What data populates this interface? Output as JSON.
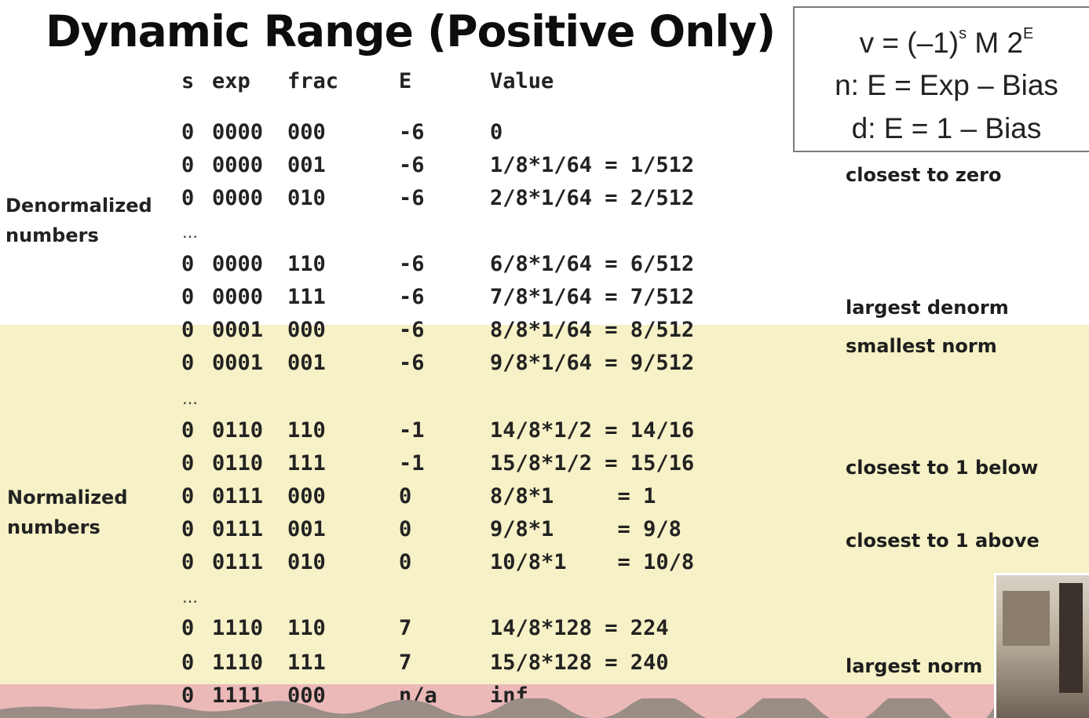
{
  "title": "Dynamic Range (Positive Only)",
  "formula": {
    "line1_pre": "v = (–1)",
    "line1_sup1": "s",
    "line1_mid": " M 2",
    "line1_sup2": "E",
    "line2": "n: E = Exp – Bias",
    "line3": "d: E = 1 – Bias"
  },
  "headers": {
    "s": "s",
    "exp": "exp",
    "frac": "frac",
    "E": "E",
    "value": "Value"
  },
  "rows": [
    {
      "s": "0",
      "exp": "0000",
      "frac": "000",
      "E": "-6",
      "value": "0"
    },
    {
      "s": "0",
      "exp": "0000",
      "frac": "001",
      "E": "-6",
      "value": "1/8*1/64 = 1/512"
    },
    {
      "s": "0",
      "exp": "0000",
      "frac": "010",
      "E": "-6",
      "value": "2/8*1/64 = 2/512"
    },
    {
      "s": "0",
      "exp": "0000",
      "frac": "110",
      "E": "-6",
      "value": "6/8*1/64 = 6/512"
    },
    {
      "s": "0",
      "exp": "0000",
      "frac": "111",
      "E": "-6",
      "value": "7/8*1/64 = 7/512"
    },
    {
      "s": "0",
      "exp": "0001",
      "frac": "000",
      "E": "-6",
      "value": "8/8*1/64 = 8/512"
    },
    {
      "s": "0",
      "exp": "0001",
      "frac": "001",
      "E": "-6",
      "value": "9/8*1/64 = 9/512"
    },
    {
      "s": "0",
      "exp": "0110",
      "frac": "110",
      "E": "-1",
      "value": "14/8*1/2 = 14/16"
    },
    {
      "s": "0",
      "exp": "0110",
      "frac": "111",
      "E": "-1",
      "value": "15/8*1/2 = 15/16"
    },
    {
      "s": "0",
      "exp": "0111",
      "frac": "000",
      "E": "0",
      "value": "8/8*1     = 1"
    },
    {
      "s": "0",
      "exp": "0111",
      "frac": "001",
      "E": "0",
      "value": "9/8*1     = 9/8"
    },
    {
      "s": "0",
      "exp": "0111",
      "frac": "010",
      "E": "0",
      "value": "10/8*1    = 10/8"
    },
    {
      "s": "0",
      "exp": "1110",
      "frac": "110",
      "E": "7",
      "value": "14/8*128 = 224"
    },
    {
      "s": "0",
      "exp": "1110",
      "frac": "111",
      "E": "7",
      "value": "15/8*128 = 240"
    },
    {
      "s": "0",
      "exp": "1111",
      "frac": "000",
      "E": "n/a",
      "value": "inf"
    }
  ],
  "ellipsis": "…",
  "side_labels": {
    "denorm_line1": "Denormalized",
    "denorm_line2": "numbers",
    "norm_line1": "Normalized",
    "norm_line2": "numbers"
  },
  "notes": {
    "closest_to_zero": "closest to zero",
    "largest_denorm": "largest denorm",
    "smallest_norm": "smallest norm",
    "closest_below": "closest to 1 below",
    "closest_above": "closest to 1 above",
    "largest_norm": "largest norm"
  },
  "colors": {
    "normalized_band": "#f6f1c6",
    "special_band": "#ecb9b9"
  }
}
